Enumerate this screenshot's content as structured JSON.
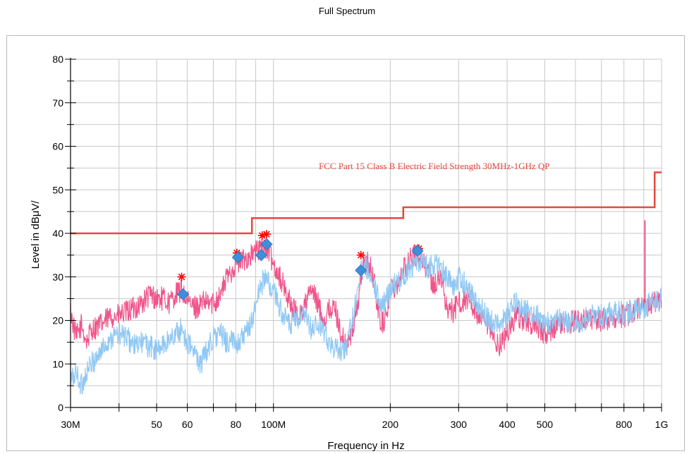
{
  "chart_data": {
    "type": "line",
    "title": "Full Spectrum",
    "xlabel": "Frequency in Hz",
    "ylabel": "Level in dBμV/",
    "x_scale": "log",
    "xlim": [
      30,
      1000
    ],
    "ylim": [
      0,
      80
    ],
    "grid": true,
    "x_ticks": [
      {
        "value": 30,
        "label": "30M"
      },
      {
        "value": 50,
        "label": "50"
      },
      {
        "value": 60,
        "label": "60"
      },
      {
        "value": 80,
        "label": "80"
      },
      {
        "value": 100,
        "label": "100M"
      },
      {
        "value": 200,
        "label": "200"
      },
      {
        "value": 300,
        "label": "300"
      },
      {
        "value": 400,
        "label": "400"
      },
      {
        "value": 500,
        "label": "500"
      },
      {
        "value": 800,
        "label": "800"
      },
      {
        "value": 1000,
        "label": "1G"
      }
    ],
    "y_ticks": [
      0,
      10,
      20,
      30,
      40,
      50,
      60,
      70,
      80
    ],
    "limit_line": {
      "label": "FCC Part 15 Class B Electric Field Strength 30MHz-1GHz QP",
      "color": "#e8473f",
      "points": [
        [
          30,
          40
        ],
        [
          88,
          40
        ],
        [
          88,
          43.5
        ],
        [
          216,
          43.5
        ],
        [
          216,
          46
        ],
        [
          960,
          46
        ],
        [
          960,
          54
        ],
        [
          1000,
          54
        ]
      ]
    },
    "series": [
      {
        "color": "#f0548a",
        "points": [
          [
            30,
            22
          ],
          [
            31,
            16
          ],
          [
            32,
            19
          ],
          [
            33,
            15
          ],
          [
            34,
            18
          ],
          [
            36,
            19
          ],
          [
            38,
            21
          ],
          [
            40,
            21
          ],
          [
            42,
            22
          ],
          [
            44,
            23
          ],
          [
            46,
            24
          ],
          [
            48,
            26
          ],
          [
            50,
            25
          ],
          [
            52,
            25
          ],
          [
            54,
            24
          ],
          [
            56,
            26
          ],
          [
            58,
            27
          ],
          [
            60,
            24
          ],
          [
            63,
            23
          ],
          [
            66,
            24
          ],
          [
            70,
            24
          ],
          [
            73,
            26
          ],
          [
            76,
            30
          ],
          [
            80,
            33
          ],
          [
            84,
            34
          ],
          [
            88,
            35
          ],
          [
            91,
            36
          ],
          [
            94,
            37
          ],
          [
            97,
            36
          ],
          [
            100,
            33
          ],
          [
            104,
            30
          ],
          [
            108,
            26
          ],
          [
            112,
            23
          ],
          [
            116,
            21
          ],
          [
            120,
            23
          ],
          [
            125,
            27
          ],
          [
            130,
            24
          ],
          [
            135,
            20
          ],
          [
            140,
            23
          ],
          [
            145,
            22
          ],
          [
            150,
            16
          ],
          [
            155,
            14
          ],
          [
            160,
            18
          ],
          [
            165,
            24
          ],
          [
            170,
            33
          ],
          [
            175,
            33
          ],
          [
            180,
            31
          ],
          [
            185,
            24
          ],
          [
            190,
            19
          ],
          [
            195,
            21
          ],
          [
            200,
            27
          ],
          [
            210,
            29
          ],
          [
            220,
            33
          ],
          [
            230,
            35
          ],
          [
            240,
            35
          ],
          [
            250,
            31
          ],
          [
            260,
            28
          ],
          [
            270,
            30
          ],
          [
            280,
            23
          ],
          [
            290,
            22
          ],
          [
            300,
            24
          ],
          [
            320,
            25
          ],
          [
            340,
            20
          ],
          [
            360,
            18
          ],
          [
            380,
            14
          ],
          [
            400,
            17
          ],
          [
            420,
            21
          ],
          [
            450,
            20
          ],
          [
            480,
            18
          ],
          [
            500,
            17
          ],
          [
            550,
            19
          ],
          [
            600,
            20
          ],
          [
            650,
            20
          ],
          [
            700,
            20
          ],
          [
            750,
            21
          ],
          [
            800,
            21
          ],
          [
            850,
            22
          ],
          [
            900,
            23
          ],
          [
            950,
            24
          ],
          [
            1000,
            25
          ]
        ]
      },
      {
        "color": "#90c8f4",
        "points": [
          [
            30,
            6
          ],
          [
            31,
            8
          ],
          [
            32,
            5
          ],
          [
            33,
            8
          ],
          [
            34,
            10
          ],
          [
            36,
            13
          ],
          [
            38,
            16
          ],
          [
            40,
            17
          ],
          [
            42,
            16
          ],
          [
            44,
            14
          ],
          [
            46,
            15
          ],
          [
            48,
            14
          ],
          [
            50,
            13
          ],
          [
            53,
            15
          ],
          [
            56,
            17
          ],
          [
            58,
            18
          ],
          [
            60,
            15
          ],
          [
            62,
            13
          ],
          [
            65,
            10
          ],
          [
            68,
            14
          ],
          [
            70,
            16
          ],
          [
            73,
            17
          ],
          [
            76,
            15
          ],
          [
            80,
            15
          ],
          [
            84,
            16
          ],
          [
            88,
            20
          ],
          [
            92,
            27
          ],
          [
            95,
            30
          ],
          [
            98,
            28
          ],
          [
            102,
            25
          ],
          [
            106,
            21
          ],
          [
            110,
            19
          ],
          [
            115,
            20
          ],
          [
            120,
            21
          ],
          [
            125,
            18
          ],
          [
            130,
            19
          ],
          [
            135,
            17
          ],
          [
            140,
            15
          ],
          [
            145,
            13
          ],
          [
            150,
            13
          ],
          [
            155,
            15
          ],
          [
            160,
            20
          ],
          [
            165,
            28
          ],
          [
            170,
            33
          ],
          [
            175,
            32
          ],
          [
            180,
            30
          ],
          [
            185,
            26
          ],
          [
            190,
            23
          ],
          [
            195,
            25
          ],
          [
            200,
            27
          ],
          [
            210,
            29
          ],
          [
            220,
            31
          ],
          [
            230,
            33
          ],
          [
            240,
            34
          ],
          [
            250,
            32
          ],
          [
            260,
            33
          ],
          [
            270,
            32
          ],
          [
            280,
            30
          ],
          [
            290,
            28
          ],
          [
            300,
            30
          ],
          [
            320,
            27
          ],
          [
            340,
            23
          ],
          [
            360,
            20
          ],
          [
            380,
            19
          ],
          [
            400,
            21
          ],
          [
            420,
            24
          ],
          [
            450,
            22
          ],
          [
            480,
            21
          ],
          [
            500,
            19
          ],
          [
            550,
            20
          ],
          [
            600,
            19
          ],
          [
            650,
            21
          ],
          [
            700,
            21
          ],
          [
            750,
            22
          ],
          [
            800,
            22
          ],
          [
            850,
            22
          ],
          [
            900,
            23
          ],
          [
            950,
            24
          ],
          [
            1000,
            25
          ]
        ]
      }
    ],
    "peaks": [
      {
        "x": 58,
        "y": 30
      },
      {
        "x": 80.5,
        "y": 35.5
      },
      {
        "x": 93.5,
        "y": 39.5
      },
      {
        "x": 96,
        "y": 39.8
      },
      {
        "x": 168,
        "y": 35
      },
      {
        "x": 237,
        "y": 36.5
      }
    ],
    "qp_markers": [
      {
        "x": 58.5,
        "y": 26
      },
      {
        "x": 81,
        "y": 34.5
      },
      {
        "x": 93,
        "y": 35
      },
      {
        "x": 96,
        "y": 37.5
      },
      {
        "x": 168,
        "y": 31.5
      },
      {
        "x": 235,
        "y": 36
      }
    ],
    "spike": {
      "x": 906,
      "y_top": 43,
      "color": "#f0548a"
    },
    "peak_color": "#ff0000",
    "marker_color": "#3e8edb"
  }
}
